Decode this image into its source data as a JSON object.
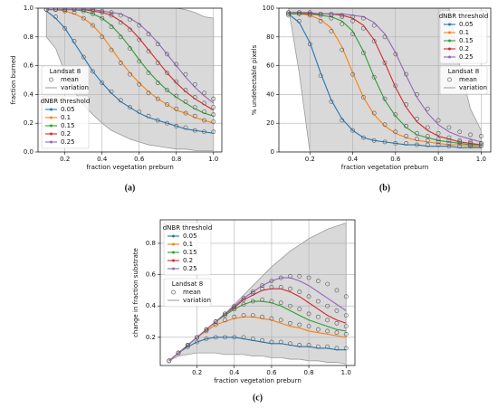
{
  "chart_data": [
    {
      "type": "line",
      "caption": "(a)",
      "x_label": "fraction vegetation preburn",
      "y_label": "fraction burned",
      "x": [
        0.1,
        0.15,
        0.2,
        0.25,
        0.3,
        0.35,
        0.4,
        0.45,
        0.5,
        0.55,
        0.6,
        0.65,
        0.7,
        0.75,
        0.8,
        0.85,
        0.9,
        0.95,
        1.0
      ],
      "xlim": [
        0.055,
        1.045
      ],
      "xticks": [
        0.2,
        0.4,
        0.6,
        0.8,
        {
          "value": 1,
          "label": "1.0"
        }
      ],
      "ylim": [
        0,
        1
      ],
      "yticks": [
        {
          "value": 0,
          "label": "0.0"
        },
        0.2,
        0.4,
        0.6,
        0.8,
        {
          "value": 1,
          "label": "1.0"
        }
      ],
      "grid": true,
      "legend_title": "dNBR threshold",
      "legend_loc": "lower left",
      "landsat_legend": {
        "title": "Landsat 8",
        "mean": "mean",
        "variation": "variation",
        "loc": "center left"
      },
      "variation": {
        "color": "#d9d9d9",
        "lower": [
          0.8,
          0.72,
          0.55,
          0.42,
          0.33,
          0.26,
          0.2,
          0.15,
          0.12,
          0.09,
          0.07,
          0.05,
          0.04,
          0.03,
          0.02,
          0.02,
          0.01,
          0.01,
          0.01
        ],
        "upper": [
          1,
          1,
          1,
          1,
          1,
          1,
          1,
          1,
          1,
          1,
          1,
          1,
          1,
          1,
          1,
          0.99,
          0.97,
          0.94,
          0.93
        ]
      },
      "series": [
        {
          "name": "0.05",
          "color": "#1f77b4",
          "values": [
            0.98,
            0.93,
            0.86,
            0.76,
            0.66,
            0.56,
            0.48,
            0.41,
            0.35,
            0.31,
            0.27,
            0.24,
            0.22,
            0.2,
            0.18,
            0.16,
            0.15,
            0.14,
            0.13
          ],
          "mean": [
            0.99,
            0.94,
            0.86,
            0.77,
            0.66,
            0.56,
            0.48,
            0.42,
            0.36,
            0.31,
            0.28,
            0.25,
            0.22,
            0.2,
            0.18,
            0.17,
            0.15,
            0.14,
            0.14
          ]
        },
        {
          "name": "0.1",
          "color": "#ff7f0e",
          "values": [
            0.99,
            0.99,
            0.98,
            0.96,
            0.93,
            0.88,
            0.81,
            0.72,
            0.63,
            0.55,
            0.48,
            0.42,
            0.37,
            0.33,
            0.29,
            0.27,
            0.24,
            0.22,
            0.2
          ],
          "mean": [
            0.99,
            0.99,
            0.98,
            0.97,
            0.93,
            0.88,
            0.8,
            0.71,
            0.62,
            0.54,
            0.47,
            0.41,
            0.37,
            0.33,
            0.3,
            0.27,
            0.25,
            0.22,
            0.21
          ]
        },
        {
          "name": "0.15",
          "color": "#2ca02c",
          "values": [
            0.99,
            0.99,
            0.99,
            0.99,
            0.98,
            0.96,
            0.93,
            0.88,
            0.81,
            0.73,
            0.64,
            0.56,
            0.49,
            0.43,
            0.38,
            0.34,
            0.3,
            0.27,
            0.25
          ],
          "mean": [
            0.99,
            0.99,
            0.99,
            0.99,
            0.98,
            0.96,
            0.93,
            0.87,
            0.8,
            0.72,
            0.63,
            0.55,
            0.48,
            0.43,
            0.39,
            0.35,
            0.31,
            0.28,
            0.26
          ]
        },
        {
          "name": "0.2",
          "color": "#d62728",
          "values": [
            0.99,
            0.99,
            0.99,
            0.99,
            0.99,
            0.98,
            0.97,
            0.95,
            0.91,
            0.86,
            0.79,
            0.71,
            0.63,
            0.55,
            0.48,
            0.42,
            0.37,
            0.33,
            0.29
          ],
          "mean": [
            0.99,
            0.99,
            0.99,
            0.99,
            0.99,
            0.98,
            0.97,
            0.95,
            0.9,
            0.85,
            0.78,
            0.7,
            0.62,
            0.55,
            0.49,
            0.43,
            0.38,
            0.34,
            0.31
          ]
        },
        {
          "name": "0.25",
          "color": "#9467bd",
          "values": [
            0.99,
            0.99,
            0.99,
            0.99,
            0.99,
            0.99,
            0.98,
            0.97,
            0.96,
            0.93,
            0.89,
            0.83,
            0.76,
            0.68,
            0.6,
            0.52,
            0.45,
            0.39,
            0.34
          ],
          "mean": [
            0.99,
            0.99,
            0.99,
            0.99,
            0.99,
            0.99,
            0.98,
            0.97,
            0.95,
            0.92,
            0.88,
            0.82,
            0.75,
            0.68,
            0.61,
            0.54,
            0.47,
            0.41,
            0.37
          ]
        }
      ]
    },
    {
      "type": "line",
      "caption": "(b)",
      "x_label": "fraction vegetation preburn",
      "y_label": "% undetectable pixels",
      "x": [
        0.1,
        0.15,
        0.2,
        0.25,
        0.3,
        0.35,
        0.4,
        0.45,
        0.5,
        0.55,
        0.6,
        0.65,
        0.7,
        0.75,
        0.8,
        0.85,
        0.9,
        0.95,
        1.0
      ],
      "xlim": [
        0.055,
        1.045
      ],
      "xticks": [
        0.2,
        0.4,
        0.6,
        0.8,
        {
          "value": 1,
          "label": "1.0"
        }
      ],
      "ylim": [
        0,
        100
      ],
      "yticks": [
        0,
        20,
        40,
        60,
        80,
        100
      ],
      "grid": true,
      "legend_title": "dNBR threshold",
      "legend_loc": "upper right",
      "landsat_legend": {
        "title": "Landsat 8",
        "mean": "mean",
        "variation": "variation",
        "loc": "center right"
      },
      "variation": {
        "color": "#d9d9d9",
        "lower": [
          100,
          55,
          0,
          0,
          0,
          0,
          0,
          0,
          0,
          0,
          0,
          0,
          0,
          0,
          0,
          0,
          0,
          0,
          0
        ],
        "upper": [
          100,
          100,
          100,
          100,
          100,
          100,
          100,
          100,
          100,
          100,
          100,
          100,
          100,
          100,
          100,
          100,
          60,
          30,
          15
        ]
      },
      "series": [
        {
          "name": "0.05",
          "color": "#1f77b4",
          "values": [
            96,
            90,
            76,
            55,
            36,
            23,
            15,
            10,
            8,
            7,
            6,
            5,
            5,
            4,
            4,
            4,
            3,
            3,
            3
          ],
          "mean": [
            95,
            91,
            75,
            53,
            35,
            22,
            15,
            10,
            8,
            7,
            6,
            6,
            5,
            5,
            5,
            4,
            4,
            4,
            4
          ]
        },
        {
          "name": "0.1",
          "color": "#ff7f0e",
          "values": [
            96,
            96,
            95,
            92,
            86,
            73,
            55,
            38,
            26,
            18,
            13,
            10,
            8,
            7,
            6,
            5,
            5,
            4,
            4
          ],
          "mean": [
            96,
            96,
            95,
            91,
            84,
            71,
            54,
            38,
            27,
            19,
            14,
            11,
            9,
            8,
            7,
            6,
            6,
            5,
            5
          ]
        },
        {
          "name": "0.15",
          "color": "#2ca02c",
          "values": [
            96,
            96,
            96,
            95,
            94,
            91,
            84,
            70,
            52,
            36,
            25,
            17,
            12,
            10,
            8,
            7,
            6,
            5,
            5
          ],
          "mean": [
            96,
            96,
            96,
            95,
            93,
            89,
            82,
            69,
            52,
            37,
            26,
            18,
            13,
            11,
            9,
            8,
            7,
            6,
            6
          ]
        },
        {
          "name": "0.2",
          "color": "#d62728",
          "values": [
            97,
            97,
            96,
            96,
            96,
            95,
            93,
            88,
            78,
            62,
            45,
            31,
            21,
            15,
            11,
            9,
            7,
            6,
            5
          ],
          "mean": [
            97,
            97,
            96,
            96,
            95,
            94,
            91,
            86,
            77,
            62,
            46,
            33,
            23,
            17,
            13,
            10,
            8,
            7,
            6
          ]
        },
        {
          "name": "0.25",
          "color": "#9467bd",
          "values": [
            97,
            97,
            97,
            96,
            96,
            96,
            95,
            94,
            90,
            82,
            69,
            53,
            38,
            27,
            19,
            14,
            11,
            9,
            7
          ],
          "mean": [
            97,
            97,
            97,
            96,
            96,
            95,
            94,
            93,
            88,
            80,
            68,
            54,
            40,
            30,
            22,
            17,
            14,
            12,
            11
          ]
        }
      ]
    },
    {
      "type": "line",
      "caption": "(c)",
      "x_label": "fraction vegetation preburn",
      "y_label": "change in fraction substrate",
      "x": [
        0.05,
        0.1,
        0.15,
        0.2,
        0.25,
        0.3,
        0.35,
        0.4,
        0.45,
        0.5,
        0.55,
        0.6,
        0.65,
        0.7,
        0.75,
        0.8,
        0.85,
        0.9,
        0.95,
        1.0
      ],
      "xlim": [
        0.0025,
        1.0475
      ],
      "xticks": [
        0.2,
        0.4,
        0.6,
        0.8,
        {
          "value": 1,
          "label": "1.0"
        }
      ],
      "ylim": [
        0.02,
        0.95
      ],
      "yticks": [
        0.2,
        0.4,
        0.6,
        0.8
      ],
      "grid": true,
      "legend_title": "dNBR threshold",
      "legend_loc": "upper left",
      "landsat_legend": {
        "title": "Landsat 8",
        "mean": "mean",
        "variation": "variation",
        "loc": "center left"
      },
      "variation": {
        "color": "#d9d9d9",
        "lower": [
          0.05,
          0.08,
          0.09,
          0.1,
          0.1,
          0.1,
          0.09,
          0.09,
          0.09,
          0.08,
          0.08,
          0.07,
          0.07,
          0.06,
          0.06,
          0.05,
          0.05,
          0.04,
          0.04,
          0.03
        ],
        "upper": [
          0.05,
          0.1,
          0.15,
          0.2,
          0.25,
          0.3,
          0.35,
          0.41,
          0.47,
          0.53,
          0.59,
          0.65,
          0.7,
          0.75,
          0.79,
          0.83,
          0.86,
          0.89,
          0.91,
          0.93
        ]
      },
      "series": [
        {
          "name": "0.05",
          "color": "#1f77b4",
          "values": [
            0.05,
            0.1,
            0.14,
            0.17,
            0.19,
            0.2,
            0.2,
            0.2,
            0.19,
            0.18,
            0.17,
            0.16,
            0.16,
            0.15,
            0.14,
            0.14,
            0.13,
            0.13,
            0.12,
            0.12
          ],
          "mean": [
            0.05,
            0.1,
            0.14,
            0.17,
            0.19,
            0.2,
            0.2,
            0.2,
            0.2,
            0.19,
            0.18,
            0.17,
            0.17,
            0.16,
            0.15,
            0.15,
            0.14,
            0.14,
            0.13,
            0.13
          ]
        },
        {
          "name": "0.1",
          "color": "#ff7f0e",
          "values": [
            0.05,
            0.1,
            0.15,
            0.2,
            0.24,
            0.28,
            0.3,
            0.32,
            0.33,
            0.33,
            0.32,
            0.31,
            0.29,
            0.27,
            0.26,
            0.24,
            0.23,
            0.22,
            0.21,
            0.2
          ],
          "mean": [
            0.05,
            0.1,
            0.15,
            0.2,
            0.24,
            0.28,
            0.31,
            0.33,
            0.34,
            0.34,
            0.33,
            0.32,
            0.31,
            0.29,
            0.28,
            0.27,
            0.25,
            0.24,
            0.23,
            0.22
          ]
        },
        {
          "name": "0.15",
          "color": "#2ca02c",
          "values": [
            0.05,
            0.1,
            0.15,
            0.2,
            0.25,
            0.3,
            0.34,
            0.38,
            0.41,
            0.43,
            0.43,
            0.42,
            0.4,
            0.37,
            0.34,
            0.31,
            0.29,
            0.27,
            0.25,
            0.24
          ],
          "mean": [
            0.05,
            0.1,
            0.15,
            0.2,
            0.25,
            0.3,
            0.34,
            0.38,
            0.41,
            0.43,
            0.44,
            0.43,
            0.42,
            0.4,
            0.38,
            0.35,
            0.33,
            0.31,
            0.29,
            0.27
          ]
        },
        {
          "name": "0.2",
          "color": "#d62728",
          "values": [
            0.05,
            0.1,
            0.15,
            0.2,
            0.25,
            0.3,
            0.35,
            0.39,
            0.44,
            0.47,
            0.5,
            0.51,
            0.51,
            0.49,
            0.46,
            0.42,
            0.38,
            0.34,
            0.31,
            0.29
          ],
          "mean": [
            0.05,
            0.1,
            0.15,
            0.2,
            0.25,
            0.3,
            0.35,
            0.39,
            0.44,
            0.48,
            0.51,
            0.52,
            0.52,
            0.51,
            0.49,
            0.46,
            0.43,
            0.4,
            0.37,
            0.34
          ]
        },
        {
          "name": "0.25",
          "color": "#9467bd",
          "values": [
            0.05,
            0.1,
            0.15,
            0.2,
            0.25,
            0.3,
            0.35,
            0.4,
            0.45,
            0.49,
            0.53,
            0.56,
            0.58,
            0.58,
            0.56,
            0.53,
            0.49,
            0.45,
            0.41,
            0.37
          ],
          "mean": [
            0.05,
            0.1,
            0.15,
            0.2,
            0.25,
            0.3,
            0.35,
            0.4,
            0.45,
            0.49,
            0.53,
            0.56,
            0.58,
            0.59,
            0.59,
            0.58,
            0.56,
            0.54,
            0.5,
            0.46
          ]
        }
      ]
    }
  ]
}
